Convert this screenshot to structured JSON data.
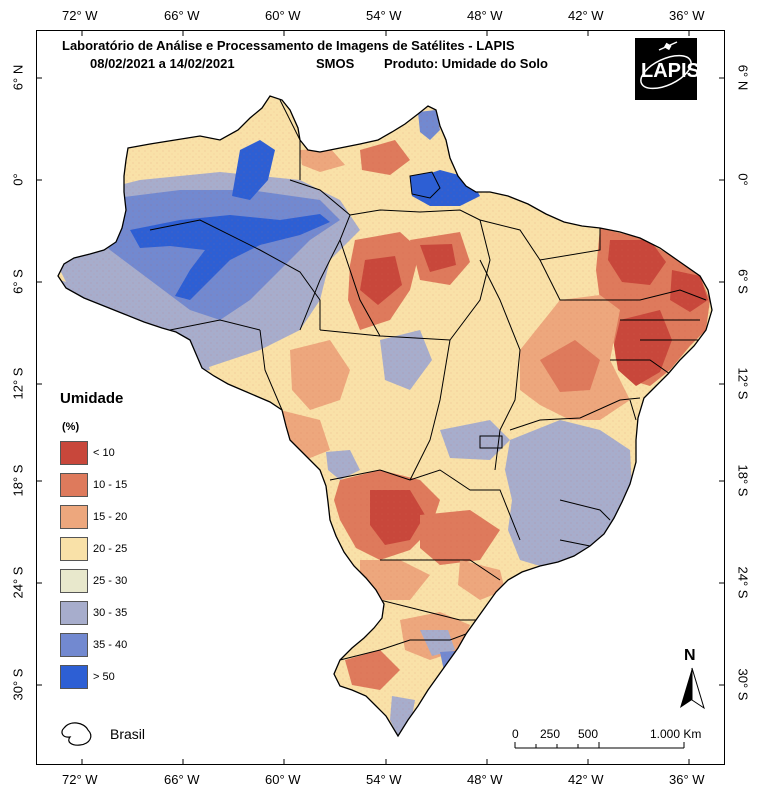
{
  "header": {
    "title": "Laboratório de Análise e Processamento de Imagens de Satélites - LAPIS",
    "period": "08/02/2021  a  14/02/2021",
    "sensor": "SMOS",
    "product": "Produto: Umidade do Solo"
  },
  "logo": {
    "text": "LAPIS",
    "icon": "satellite-icon"
  },
  "graticule": {
    "longitudes": [
      "72° W",
      "66° W",
      "60° W",
      "54° W",
      "48° W",
      "42° W",
      "36° W"
    ],
    "latitudes": [
      "6° N",
      "0°",
      "6° S",
      "12° S",
      "18° S",
      "24° S",
      "30° S"
    ]
  },
  "legend": {
    "title": "Umidade",
    "unit": "(%)",
    "items": [
      {
        "label": "< 10",
        "color": "#c8473b"
      },
      {
        "label": "10 - 15",
        "color": "#de7a5c"
      },
      {
        "label": "15 - 20",
        "color": "#eda77d"
      },
      {
        "label": "20 - 25",
        "color": "#f9e1a8"
      },
      {
        "label": "25 - 30",
        "color": "#e8e8cc"
      },
      {
        "label": "30 - 35",
        "color": "#a7adcc"
      },
      {
        "label": "35 - 40",
        "color": "#7289d0"
      },
      {
        "label": "> 50",
        "color": "#2d5fd4"
      }
    ]
  },
  "boundary_legend": {
    "label": "Brasil"
  },
  "scale_bar": {
    "labels": [
      "0",
      "250",
      "500",
      "1.000 Km"
    ]
  },
  "north_arrow": {
    "label": "N"
  }
}
